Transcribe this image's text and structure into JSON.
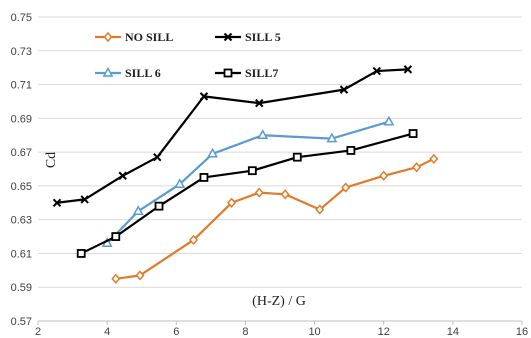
{
  "chart_data": {
    "type": "line",
    "xlabel": "(H-Z) / G",
    "ylabel": "Cd",
    "xlim": [
      2,
      16
    ],
    "ylim": [
      0.57,
      0.75
    ],
    "x_ticks": [
      2,
      4,
      6,
      8,
      10,
      12,
      14,
      16
    ],
    "y_ticks": [
      0.57,
      0.59,
      0.61,
      0.63,
      0.65,
      0.67,
      0.69,
      0.71,
      0.73,
      0.75
    ],
    "x_tick_labels": [
      "2",
      "4",
      "6",
      "8",
      "10",
      "12",
      "14",
      "16"
    ],
    "y_tick_labels": [
      "0.57",
      "0.59",
      "0.61",
      "0.63",
      "0.65",
      "0.67",
      "0.69",
      "0.71",
      "0.73",
      "0.75"
    ],
    "grid": "horizontal",
    "legend_position": "top-left",
    "series": [
      {
        "name": "NO SILL",
        "color": "#e07b2a",
        "marker": "diamond",
        "points": [
          [
            4.25,
            0.595
          ],
          [
            4.95,
            0.597
          ],
          [
            6.5,
            0.618
          ],
          [
            7.6,
            0.64
          ],
          [
            8.4,
            0.646
          ],
          [
            9.15,
            0.645
          ],
          [
            10.15,
            0.636
          ],
          [
            10.9,
            0.649
          ],
          [
            12.0,
            0.656
          ],
          [
            12.95,
            0.661
          ],
          [
            13.45,
            0.666
          ]
        ]
      },
      {
        "name": "SILL 5",
        "color": "#000000",
        "marker": "x",
        "points": [
          [
            2.55,
            0.64
          ],
          [
            3.35,
            0.642
          ],
          [
            4.45,
            0.656
          ],
          [
            5.45,
            0.667
          ],
          [
            6.8,
            0.703
          ],
          [
            8.4,
            0.699
          ],
          [
            10.85,
            0.707
          ],
          [
            11.8,
            0.718
          ],
          [
            12.7,
            0.719
          ]
        ]
      },
      {
        "name": "SILL 6",
        "color": "#5b9bd5",
        "marker": "triangle",
        "points": [
          [
            4.0,
            0.616
          ],
          [
            4.9,
            0.635
          ],
          [
            6.1,
            0.651
          ],
          [
            7.05,
            0.669
          ],
          [
            8.5,
            0.68
          ],
          [
            10.5,
            0.678
          ],
          [
            12.15,
            0.688
          ]
        ]
      },
      {
        "name": "SILL7",
        "color": "#000000",
        "marker": "square",
        "points": [
          [
            3.25,
            0.61
          ],
          [
            4.25,
            0.62
          ],
          [
            5.5,
            0.638
          ],
          [
            6.8,
            0.655
          ],
          [
            8.2,
            0.659
          ],
          [
            9.5,
            0.667
          ],
          [
            11.05,
            0.671
          ],
          [
            12.85,
            0.681
          ]
        ]
      }
    ]
  }
}
